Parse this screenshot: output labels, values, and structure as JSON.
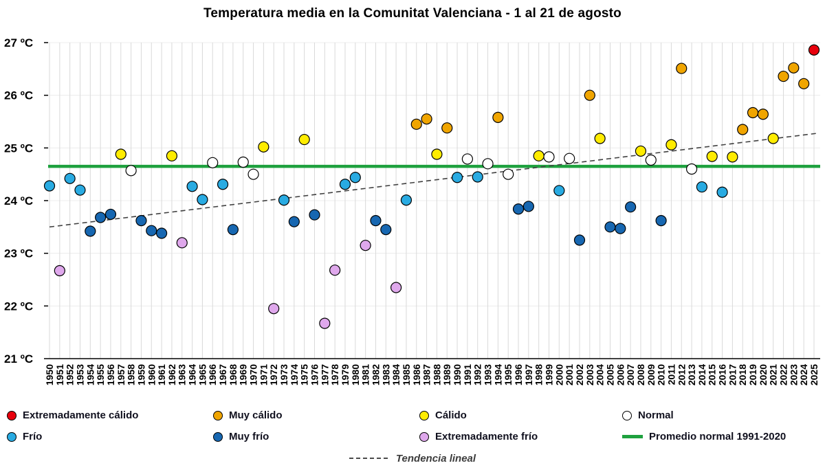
{
  "page": {
    "title": "Temperatura media en la Comunitat Valenciana - 1 al 21 de agosto"
  },
  "chart_data": {
    "type": "scatter",
    "title": "Temperatura media en la Comunitat Valenciana - 1 al 21 de agosto",
    "xlabel": "",
    "ylabel": "",
    "x_range": [
      1950,
      2025
    ],
    "ylim": [
      21,
      27
    ],
    "grid": true,
    "legend_position": "bottom",
    "ytick_values": [
      27,
      26,
      25,
      24,
      23,
      22,
      21
    ],
    "yticks": [
      "27 ºC",
      "26 ºC",
      "25 ºC",
      "24 ºC",
      "23 ºC",
      "22 ºC",
      "21 ºC"
    ],
    "reference_line": {
      "label": "Promedio normal 1991-2020",
      "value": 24.65,
      "color": "#1EA13E"
    },
    "trend_line": {
      "label": "Tendencia lineal",
      "start_value": 23.5,
      "end_value": 25.28,
      "color": "#404040",
      "style": "dashed"
    },
    "categories": {
      "extremadamente_calido": {
        "label": "Extremadamente cálido",
        "color": "#E8000D"
      },
      "muy_calido": {
        "label": "Muy cálido",
        "color": "#F0A500"
      },
      "calido": {
        "label": "Cálido",
        "color": "#FFEC00"
      },
      "normal": {
        "label": "Normal",
        "color": "#FFFFFF"
      },
      "frio": {
        "label": "Frío",
        "color": "#29ABE2"
      },
      "muy_frio": {
        "label": "Muy frío",
        "color": "#1767B1"
      },
      "extremadamente_frio": {
        "label": "Extremadamente frío",
        "color": "#DFA8EC"
      }
    },
    "points": [
      {
        "year": 1950,
        "value": 24.28,
        "category": "frio"
      },
      {
        "year": 1951,
        "value": 22.67,
        "category": "extremadamente_frio"
      },
      {
        "year": 1952,
        "value": 24.42,
        "category": "frio"
      },
      {
        "year": 1953,
        "value": 24.2,
        "category": "frio"
      },
      {
        "year": 1954,
        "value": 23.42,
        "category": "muy_frio"
      },
      {
        "year": 1955,
        "value": 23.68,
        "category": "muy_frio"
      },
      {
        "year": 1956,
        "value": 23.74,
        "category": "muy_frio"
      },
      {
        "year": 1957,
        "value": 24.88,
        "category": "calido"
      },
      {
        "year": 1958,
        "value": 24.57,
        "category": "normal"
      },
      {
        "year": 1959,
        "value": 23.62,
        "category": "muy_frio"
      },
      {
        "year": 1960,
        "value": 23.43,
        "category": "muy_frio"
      },
      {
        "year": 1961,
        "value": 23.38,
        "category": "muy_frio"
      },
      {
        "year": 1962,
        "value": 24.85,
        "category": "calido"
      },
      {
        "year": 1963,
        "value": 23.2,
        "category": "extremadamente_frio"
      },
      {
        "year": 1964,
        "value": 24.27,
        "category": "frio"
      },
      {
        "year": 1965,
        "value": 24.02,
        "category": "frio"
      },
      {
        "year": 1966,
        "value": 24.72,
        "category": "normal"
      },
      {
        "year": 1967,
        "value": 24.31,
        "category": "frio"
      },
      {
        "year": 1968,
        "value": 23.45,
        "category": "muy_frio"
      },
      {
        "year": 1969,
        "value": 24.73,
        "category": "normal"
      },
      {
        "year": 1970,
        "value": 24.5,
        "category": "normal"
      },
      {
        "year": 1971,
        "value": 25.02,
        "category": "calido"
      },
      {
        "year": 1972,
        "value": 21.95,
        "category": "extremadamente_frio"
      },
      {
        "year": 1973,
        "value": 24.01,
        "category": "frio"
      },
      {
        "year": 1974,
        "value": 23.6,
        "category": "muy_frio"
      },
      {
        "year": 1975,
        "value": 25.16,
        "category": "calido"
      },
      {
        "year": 1976,
        "value": 23.73,
        "category": "muy_frio"
      },
      {
        "year": 1977,
        "value": 21.67,
        "category": "extremadamente_frio"
      },
      {
        "year": 1978,
        "value": 22.68,
        "category": "extremadamente_frio"
      },
      {
        "year": 1979,
        "value": 24.31,
        "category": "frio"
      },
      {
        "year": 1980,
        "value": 24.44,
        "category": "frio"
      },
      {
        "year": 1981,
        "value": 23.15,
        "category": "extremadamente_frio"
      },
      {
        "year": 1982,
        "value": 23.62,
        "category": "muy_frio"
      },
      {
        "year": 1983,
        "value": 23.45,
        "category": "muy_frio"
      },
      {
        "year": 1984,
        "value": 22.35,
        "category": "extremadamente_frio"
      },
      {
        "year": 1985,
        "value": 24.01,
        "category": "frio"
      },
      {
        "year": 1986,
        "value": 25.45,
        "category": "muy_calido"
      },
      {
        "year": 1987,
        "value": 25.55,
        "category": "muy_calido"
      },
      {
        "year": 1988,
        "value": 24.88,
        "category": "calido"
      },
      {
        "year": 1989,
        "value": 25.38,
        "category": "muy_calido"
      },
      {
        "year": 1990,
        "value": 24.44,
        "category": "frio"
      },
      {
        "year": 1991,
        "value": 24.79,
        "category": "normal"
      },
      {
        "year": 1992,
        "value": 24.45,
        "category": "frio"
      },
      {
        "year": 1993,
        "value": 24.7,
        "category": "normal"
      },
      {
        "year": 1994,
        "value": 25.58,
        "category": "muy_calido"
      },
      {
        "year": 1995,
        "value": 24.5,
        "category": "normal"
      },
      {
        "year": 1996,
        "value": 23.84,
        "category": "muy_frio"
      },
      {
        "year": 1997,
        "value": 23.89,
        "category": "muy_frio"
      },
      {
        "year": 1998,
        "value": 24.85,
        "category": "calido"
      },
      {
        "year": 1999,
        "value": 24.83,
        "category": "normal"
      },
      {
        "year": 2000,
        "value": 24.19,
        "category": "frio"
      },
      {
        "year": 2001,
        "value": 24.8,
        "category": "normal"
      },
      {
        "year": 2002,
        "value": 23.25,
        "category": "muy_frio"
      },
      {
        "year": 2003,
        "value": 26.0,
        "category": "muy_calido"
      },
      {
        "year": 2004,
        "value": 25.18,
        "category": "calido"
      },
      {
        "year": 2005,
        "value": 23.5,
        "category": "muy_frio"
      },
      {
        "year": 2006,
        "value": 23.47,
        "category": "muy_frio"
      },
      {
        "year": 2007,
        "value": 23.88,
        "category": "muy_frio"
      },
      {
        "year": 2008,
        "value": 24.94,
        "category": "calido"
      },
      {
        "year": 2009,
        "value": 24.77,
        "category": "normal"
      },
      {
        "year": 2010,
        "value": 23.62,
        "category": "muy_frio"
      },
      {
        "year": 2011,
        "value": 25.06,
        "category": "calido"
      },
      {
        "year": 2012,
        "value": 26.51,
        "category": "muy_calido"
      },
      {
        "year": 2013,
        "value": 24.6,
        "category": "normal"
      },
      {
        "year": 2014,
        "value": 24.26,
        "category": "frio"
      },
      {
        "year": 2015,
        "value": 24.84,
        "category": "calido"
      },
      {
        "year": 2016,
        "value": 24.16,
        "category": "frio"
      },
      {
        "year": 2017,
        "value": 24.83,
        "category": "calido"
      },
      {
        "year": 2018,
        "value": 25.35,
        "category": "muy_calido"
      },
      {
        "year": 2019,
        "value": 25.67,
        "category": "muy_calido"
      },
      {
        "year": 2020,
        "value": 25.64,
        "category": "muy_calido"
      },
      {
        "year": 2021,
        "value": 25.18,
        "category": "calido"
      },
      {
        "year": 2022,
        "value": 26.36,
        "category": "muy_calido"
      },
      {
        "year": 2023,
        "value": 26.52,
        "category": "muy_calido"
      },
      {
        "year": 2024,
        "value": 26.22,
        "category": "muy_calido"
      },
      {
        "year": 2025,
        "value": 26.86,
        "category": "extremadamente_calido"
      }
    ]
  }
}
